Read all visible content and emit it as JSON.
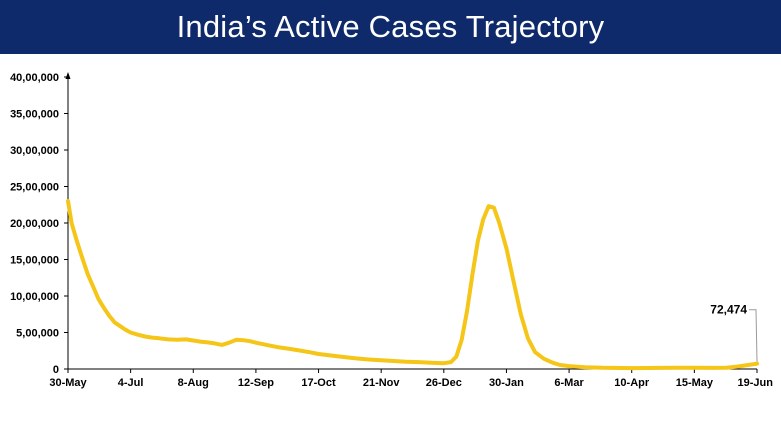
{
  "title": "India’s Active Cases Trajectory",
  "colors": {
    "header_bg": "#0f2a6b",
    "series": "#f5c518",
    "axis": "#000000",
    "annotation_line": "#9a9a9a"
  },
  "chart_data": {
    "type": "line",
    "title": "India’s Active Cases Trajectory",
    "xlabel": "",
    "ylabel": "",
    "ylim": [
      0,
      4000000
    ],
    "yticks": [
      0,
      500000,
      1000000,
      1500000,
      2000000,
      2500000,
      3000000,
      3500000,
      4000000
    ],
    "ytick_labels": [
      "0",
      "5,00,000",
      "10,00,000",
      "15,00,000",
      "20,00,000",
      "25,00,000",
      "30,00,000",
      "35,00,000",
      "40,00,000"
    ],
    "xlim": [
      "2021-05-30",
      "2022-06-19"
    ],
    "xticks": [
      "2021-05-30",
      "2021-07-04",
      "2021-08-08",
      "2021-09-12",
      "2021-10-17",
      "2021-11-21",
      "2021-12-26",
      "2022-01-30",
      "2022-03-06",
      "2022-04-10",
      "2022-05-15",
      "2022-06-19"
    ],
    "xtick_labels": [
      "30-May",
      "4-Jul",
      "8-Aug",
      "12-Sep",
      "17-Oct",
      "21-Nov",
      "26-Dec",
      "30-Jan",
      "6-Mar",
      "10-Apr",
      "15-May",
      "19-Jun"
    ],
    "grid": false,
    "series": [
      {
        "points": [
          [
            "2021-05-30",
            2300000
          ],
          [
            "2021-06-01",
            2000000
          ],
          [
            "2021-06-04",
            1750000
          ],
          [
            "2021-06-07",
            1520000
          ],
          [
            "2021-06-10",
            1300000
          ],
          [
            "2021-06-13",
            1130000
          ],
          [
            "2021-06-16",
            960000
          ],
          [
            "2021-06-19",
            840000
          ],
          [
            "2021-06-22",
            730000
          ],
          [
            "2021-06-25",
            640000
          ],
          [
            "2021-06-28",
            590000
          ],
          [
            "2021-07-01",
            540000
          ],
          [
            "2021-07-04",
            500000
          ],
          [
            "2021-07-08",
            470000
          ],
          [
            "2021-07-12",
            445000
          ],
          [
            "2021-07-16",
            430000
          ],
          [
            "2021-07-20",
            420000
          ],
          [
            "2021-07-25",
            405000
          ],
          [
            "2021-07-30",
            400000
          ],
          [
            "2021-08-04",
            405000
          ],
          [
            "2021-08-08",
            390000
          ],
          [
            "2021-08-12",
            375000
          ],
          [
            "2021-08-16",
            365000
          ],
          [
            "2021-08-20",
            350000
          ],
          [
            "2021-08-24",
            330000
          ],
          [
            "2021-08-28",
            360000
          ],
          [
            "2021-09-01",
            400000
          ],
          [
            "2021-09-05",
            395000
          ],
          [
            "2021-09-09",
            380000
          ],
          [
            "2021-09-12",
            360000
          ],
          [
            "2021-09-18",
            330000
          ],
          [
            "2021-09-24",
            300000
          ],
          [
            "2021-09-30",
            280000
          ],
          [
            "2021-10-06",
            255000
          ],
          [
            "2021-10-12",
            230000
          ],
          [
            "2021-10-17",
            205000
          ],
          [
            "2021-10-24",
            185000
          ],
          [
            "2021-10-31",
            165000
          ],
          [
            "2021-11-07",
            145000
          ],
          [
            "2021-11-14",
            130000
          ],
          [
            "2021-11-21",
            120000
          ],
          [
            "2021-11-28",
            110000
          ],
          [
            "2021-12-05",
            100000
          ],
          [
            "2021-12-12",
            95000
          ],
          [
            "2021-12-19",
            85000
          ],
          [
            "2021-12-26",
            80000
          ],
          [
            "2021-12-30",
            95000
          ],
          [
            "2022-01-02",
            170000
          ],
          [
            "2022-01-05",
            400000
          ],
          [
            "2022-01-08",
            800000
          ],
          [
            "2022-01-11",
            1300000
          ],
          [
            "2022-01-14",
            1750000
          ],
          [
            "2022-01-17",
            2050000
          ],
          [
            "2022-01-20",
            2230000
          ],
          [
            "2022-01-23",
            2210000
          ],
          [
            "2022-01-26",
            2000000
          ],
          [
            "2022-01-30",
            1650000
          ],
          [
            "2022-02-03",
            1200000
          ],
          [
            "2022-02-07",
            750000
          ],
          [
            "2022-02-11",
            420000
          ],
          [
            "2022-02-15",
            230000
          ],
          [
            "2022-02-20",
            140000
          ],
          [
            "2022-02-25",
            85000
          ],
          [
            "2022-03-01",
            55000
          ],
          [
            "2022-03-06",
            40000
          ],
          [
            "2022-03-15",
            25000
          ],
          [
            "2022-03-25",
            17000
          ],
          [
            "2022-04-10",
            12000
          ],
          [
            "2022-04-25",
            15000
          ],
          [
            "2022-05-05",
            17000
          ],
          [
            "2022-05-15",
            16000
          ],
          [
            "2022-05-25",
            15000
          ],
          [
            "2022-06-02",
            18000
          ],
          [
            "2022-06-09",
            35000
          ],
          [
            "2022-06-14",
            55000
          ],
          [
            "2022-06-19",
            72474
          ]
        ]
      }
    ],
    "annotations": [
      {
        "text": "72,474",
        "x": "2022-06-19",
        "y": 72474
      }
    ]
  }
}
